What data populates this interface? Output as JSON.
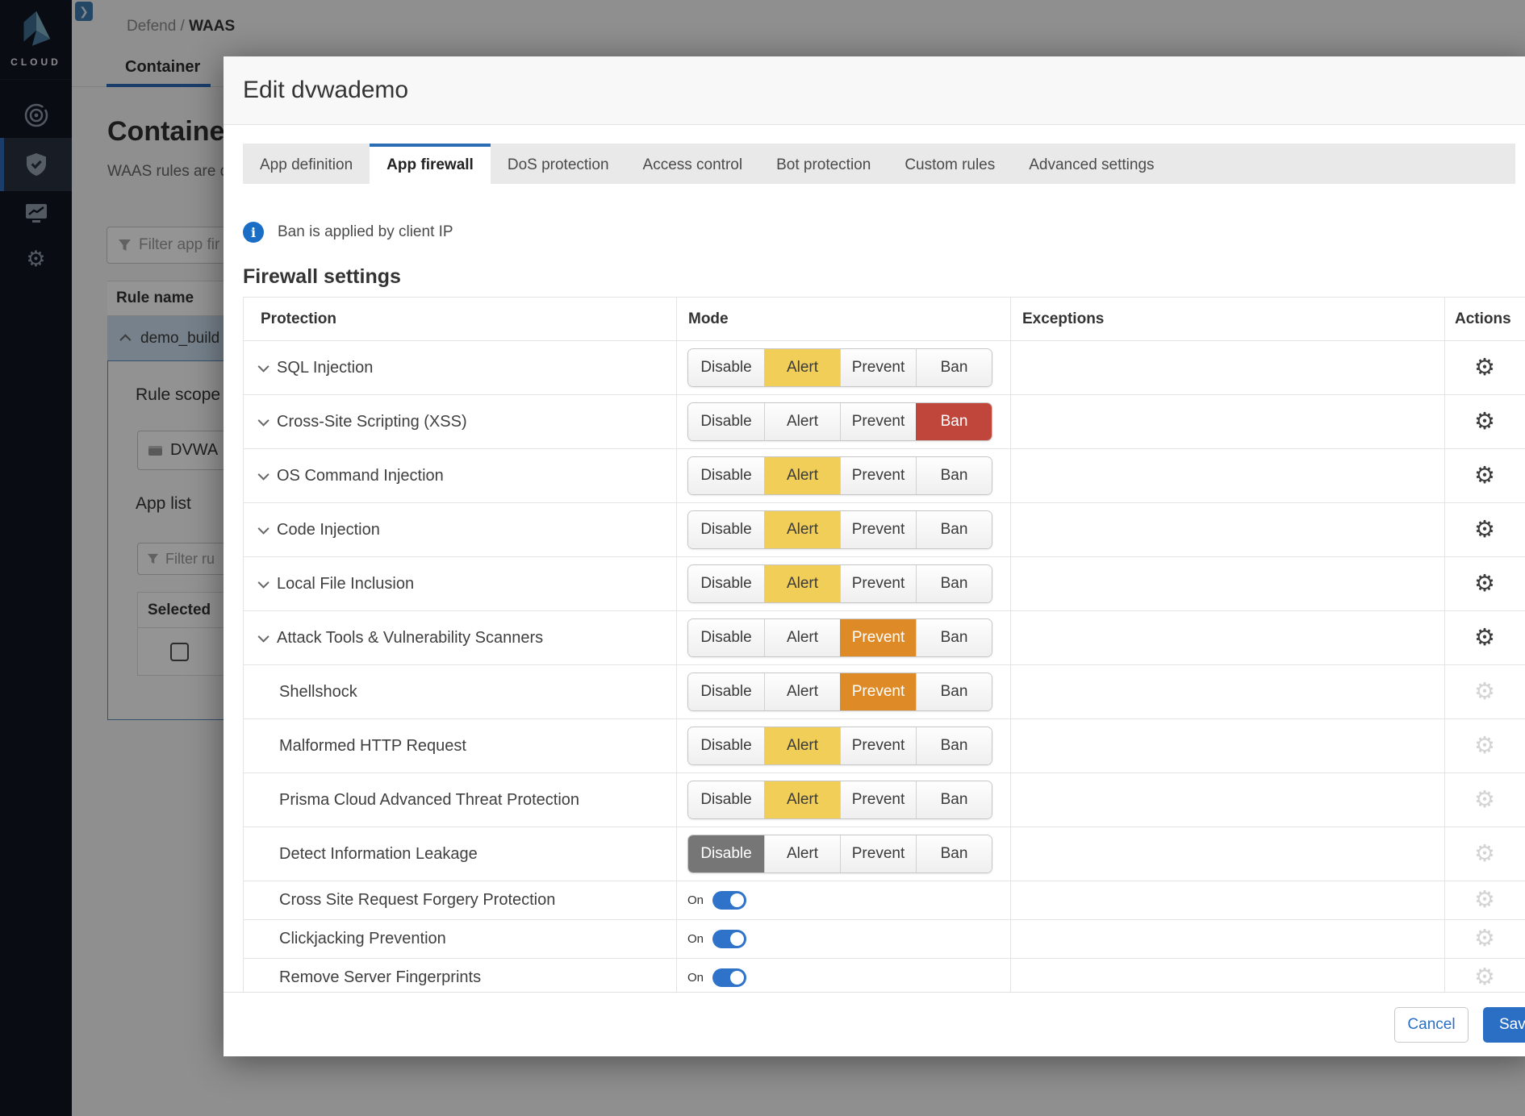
{
  "sidebar": {
    "logo_text": "CLOUD",
    "items": [
      {
        "icon": "radar-icon",
        "active": false
      },
      {
        "icon": "shield-icon",
        "active": true
      },
      {
        "icon": "monitor-chart-icon",
        "active": false
      },
      {
        "icon": "gear-icon",
        "active": false
      }
    ]
  },
  "background_page": {
    "breadcrumb": {
      "section": "Defend",
      "separator": " / ",
      "current": "WAAS"
    },
    "tab_label": "Container",
    "title": "Container",
    "subtitle": "WAAS rules are d",
    "filter_placeholder": "Filter app fir",
    "rules_table": {
      "header": "Rule name",
      "expanded_row": "demo_build",
      "detail": {
        "rule_scope_label": "Rule scope",
        "scope_chip": "DVWA",
        "app_list_label": "App list",
        "app_filter_placeholder": "Filter ru",
        "selected_header": "Selected"
      }
    }
  },
  "modal": {
    "title": "Edit dvwademo",
    "tabs": [
      {
        "label": "App definition",
        "active": false
      },
      {
        "label": "App firewall",
        "active": true
      },
      {
        "label": "DoS protection",
        "active": false
      },
      {
        "label": "Access control",
        "active": false
      },
      {
        "label": "Bot protection",
        "active": false
      },
      {
        "label": "Custom rules",
        "active": false
      },
      {
        "label": "Advanced settings",
        "active": false
      }
    ],
    "info_banner": "Ban is applied by client IP",
    "section_heading": "Firewall settings",
    "table": {
      "columns": [
        "Protection",
        "Mode",
        "Exceptions",
        "Actions"
      ],
      "mode_options": [
        "Disable",
        "Alert",
        "Prevent",
        "Ban"
      ],
      "rows": [
        {
          "name": "SQL Injection",
          "expandable": true,
          "control": "buttons",
          "mode": "Alert",
          "actions_enabled": true
        },
        {
          "name": "Cross-Site Scripting (XSS)",
          "expandable": true,
          "control": "buttons",
          "mode": "Ban",
          "actions_enabled": true
        },
        {
          "name": "OS Command Injection",
          "expandable": true,
          "control": "buttons",
          "mode": "Alert",
          "actions_enabled": true
        },
        {
          "name": "Code Injection",
          "expandable": true,
          "control": "buttons",
          "mode": "Alert",
          "actions_enabled": true
        },
        {
          "name": "Local File Inclusion",
          "expandable": true,
          "control": "buttons",
          "mode": "Alert",
          "actions_enabled": true
        },
        {
          "name": "Attack Tools & Vulnerability Scanners",
          "expandable": true,
          "control": "buttons",
          "mode": "Prevent",
          "actions_enabled": true
        },
        {
          "name": "Shellshock",
          "expandable": false,
          "control": "buttons",
          "mode": "Prevent",
          "actions_enabled": false
        },
        {
          "name": "Malformed HTTP Request",
          "expandable": false,
          "control": "buttons",
          "mode": "Alert",
          "actions_enabled": false
        },
        {
          "name": "Prisma Cloud Advanced Threat Protection",
          "expandable": false,
          "control": "buttons",
          "mode": "Alert",
          "actions_enabled": false
        },
        {
          "name": "Detect Information Leakage",
          "expandable": false,
          "control": "buttons",
          "mode": "Disable",
          "actions_enabled": false
        },
        {
          "name": "Cross Site Request Forgery Protection",
          "expandable": false,
          "control": "toggle",
          "toggle_label": "On",
          "toggle_on": true,
          "actions_enabled": false
        },
        {
          "name": "Clickjacking Prevention",
          "expandable": false,
          "control": "toggle",
          "toggle_label": "On",
          "toggle_on": true,
          "actions_enabled": false
        },
        {
          "name": "Remove Server Fingerprints",
          "expandable": false,
          "control": "toggle",
          "toggle_label": "On",
          "toggle_on": true,
          "actions_enabled": false
        }
      ]
    },
    "footer": {
      "cancel_label": "Cancel",
      "save_label": "Save"
    }
  },
  "colors": {
    "accent_blue": "#2a6fc4",
    "alert_selected": "#f1ce58",
    "prevent_selected": "#de8b27",
    "ban_selected": "#c0463c",
    "disable_selected": "#767676",
    "toggle_on": "#2e72ca",
    "sidebar_bg": "#10161f"
  }
}
